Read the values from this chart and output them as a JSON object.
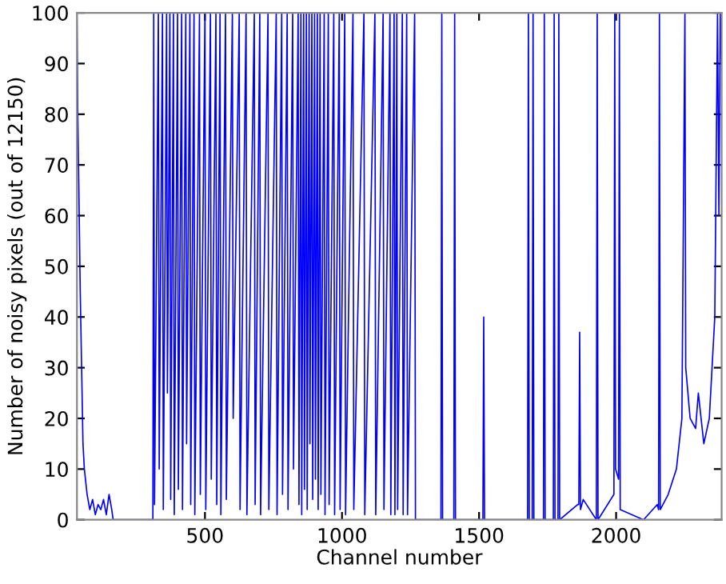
{
  "chart_data": {
    "type": "line",
    "xlabel": "Channel number",
    "ylabel": "Number of noisy pixels (out of 12150)",
    "xlim": [
      33,
      2385
    ],
    "ylim": [
      0,
      100
    ],
    "xticks": [
      500,
      1000,
      1500,
      2000
    ],
    "yticks": [
      0,
      10,
      20,
      30,
      40,
      50,
      60,
      70,
      80,
      90,
      100
    ],
    "grid": false,
    "marker": "none",
    "line_style": "solid",
    "series": [
      {
        "color": "#0000ff",
        "x": [
          33,
          36,
          40,
          45,
          50,
          55,
          60,
          70,
          80,
          90,
          100,
          110,
          120,
          130,
          140,
          150,
          160,
          165,
          310,
          313,
          316,
          330,
          333,
          345,
          348,
          360,
          363,
          372,
          375,
          385,
          388,
          400,
          403,
          415,
          418,
          430,
          433,
          445,
          448,
          460,
          463,
          480,
          483,
          500,
          503,
          520,
          523,
          540,
          543,
          555,
          558,
          575,
          578,
          600,
          603,
          625,
          628,
          650,
          653,
          680,
          683,
          700,
          703,
          730,
          733,
          760,
          763,
          780,
          783,
          800,
          803,
          820,
          823,
          840,
          843,
          850,
          853,
          860,
          863,
          870,
          873,
          880,
          883,
          890,
          893,
          900,
          903,
          910,
          913,
          920,
          923,
          935,
          938,
          950,
          953,
          970,
          973,
          990,
          993,
          1010,
          1013,
          1040,
          1043,
          1080,
          1083,
          1120,
          1123,
          1150,
          1153,
          1175,
          1178,
          1190,
          1193,
          1200,
          1203,
          1220,
          1223,
          1236,
          1239,
          1265,
          1268,
          1361,
          1364,
          1367,
          1408,
          1411,
          1414,
          1514,
          1517,
          1520,
          1677,
          1680,
          1683,
          1694,
          1697,
          1700,
          1735,
          1738,
          1741,
          1771,
          1774,
          1777,
          1788,
          1791,
          1794,
          1860,
          1864,
          1867,
          1870,
          1880,
          1928,
          1931,
          1934,
          1992,
          1995,
          1998,
          2009,
          2012,
          2015,
          2100,
          2150,
          2155,
          2158,
          2161,
          2190,
          2220,
          2240,
          2251,
          2254,
          2270,
          2290,
          2300,
          2320,
          2340,
          2360,
          2370,
          2375,
          2380,
          2385
        ],
        "values": [
          100,
          80,
          65,
          45,
          30,
          15,
          10,
          5,
          2,
          4,
          1,
          3,
          2,
          4,
          1,
          5,
          2,
          0,
          0,
          100,
          3,
          100,
          10,
          100,
          2,
          100,
          25,
          100,
          4,
          100,
          1,
          100,
          6,
          100,
          2,
          100,
          15,
          100,
          3,
          100,
          1,
          100,
          5,
          100,
          2,
          100,
          8,
          100,
          3,
          100,
          1,
          100,
          4,
          100,
          20,
          100,
          2,
          100,
          1,
          100,
          3,
          100,
          1,
          100,
          2,
          100,
          1,
          100,
          5,
          100,
          2,
          100,
          10,
          100,
          3,
          100,
          1,
          100,
          6,
          100,
          2,
          100,
          15,
          100,
          4,
          100,
          8,
          100,
          2,
          100,
          5,
          100,
          1,
          100,
          3,
          100,
          1,
          100,
          2,
          100,
          1,
          100,
          2,
          100,
          1,
          100,
          1,
          100,
          2,
          100,
          1,
          100,
          1,
          100,
          2,
          100,
          1,
          100,
          1,
          100,
          0,
          0,
          100,
          0,
          0,
          100,
          0,
          0,
          40,
          0,
          0,
          100,
          0,
          0,
          100,
          0,
          0,
          100,
          0,
          0,
          100,
          0,
          0,
          100,
          0,
          3,
          3,
          37,
          2,
          4,
          0,
          100,
          0,
          5,
          100,
          10,
          8,
          100,
          2,
          0,
          3,
          2,
          100,
          2,
          5,
          10,
          20,
          100,
          30,
          20,
          18,
          25,
          15,
          20,
          40,
          100,
          60,
          100,
          90
        ]
      }
    ]
  }
}
